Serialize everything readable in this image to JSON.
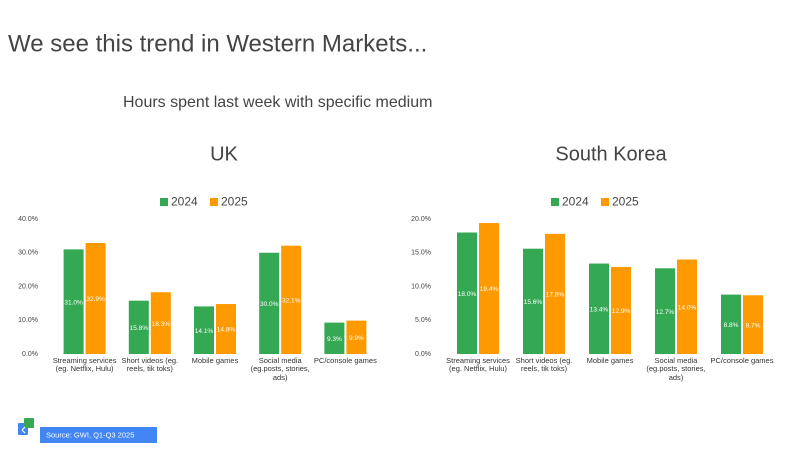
{
  "title": "We see this trend in Western Markets...",
  "subtitle": "Hours spent last week with specific medium",
  "source": "Source: GWI, Q1-Q3 2025",
  "chart_data": [
    {
      "type": "bar",
      "title": "UK",
      "categories": [
        "Streaming services (eg. Netflix, Hulu)",
        "Short videos (eg. reels, tik toks)",
        "Mobile games",
        "Social media (eg.posts, stories, ads)",
        "PC/console games"
      ],
      "series": [
        {
          "name": "2024",
          "color": "#34a853",
          "values": [
            31.0,
            15.8,
            14.1,
            30.0,
            9.3
          ],
          "value_labels": [
            "31.0%",
            "15.8%",
            "14.1%",
            "30.0%",
            "9.3%"
          ]
        },
        {
          "name": "2025",
          "color": "#ff9900",
          "values": [
            32.9,
            18.3,
            14.8,
            32.1,
            9.9
          ],
          "value_labels": [
            "32.9%",
            "18.3%",
            "14.8%",
            "32.1%",
            "9.9%"
          ]
        }
      ],
      "ylim": [
        0,
        40
      ],
      "yticks": [
        {
          "value": 0,
          "label": "0.0%"
        },
        {
          "value": 10,
          "label": "10.0%"
        },
        {
          "value": 20,
          "label": "20.0%"
        },
        {
          "value": 30,
          "label": "30.0%"
        },
        {
          "value": 40,
          "label": "40.0%"
        }
      ],
      "grid": false,
      "legend": "top"
    },
    {
      "type": "bar",
      "title": "South Korea",
      "categories": [
        "Streaming services (eg. Netflix, Hulu)",
        "Short videos (eg. reels, tik toks)",
        "Mobile games",
        "Social media (eg.posts, stories, ads)",
        "PC/console games"
      ],
      "series": [
        {
          "name": "2024",
          "color": "#34a853",
          "values": [
            18.0,
            15.6,
            13.4,
            12.7,
            8.8
          ],
          "value_labels": [
            "18.0%",
            "15.6%",
            "13.4%",
            "12.7%",
            "8.8%"
          ]
        },
        {
          "name": "2025",
          "color": "#ff9900",
          "values": [
            19.4,
            17.8,
            12.9,
            14.0,
            8.7
          ],
          "value_labels": [
            "19.4%",
            "17.8%",
            "12.9%",
            "14.0%",
            "8.7%"
          ]
        }
      ],
      "ylim": [
        0,
        20
      ],
      "yticks": [
        {
          "value": 0,
          "label": "0.0%"
        },
        {
          "value": 5,
          "label": "5.0%"
        },
        {
          "value": 10,
          "label": "10.0%"
        },
        {
          "value": 15,
          "label": "15.0%"
        },
        {
          "value": 20,
          "label": "20.0%"
        }
      ],
      "grid": false,
      "legend": "top"
    }
  ]
}
